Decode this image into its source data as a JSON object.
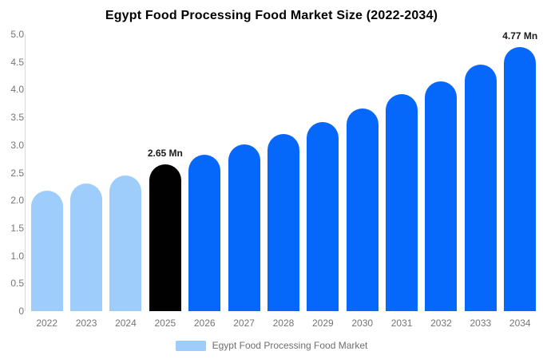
{
  "title": "Egypt Food Processing Food Market Size (2022-2034)",
  "legend": {
    "label": "Egypt Food Processing Food Market",
    "swatch_color": "#9ECDFB"
  },
  "colors": {
    "historical_bar": "#9ECDFB",
    "base_year_bar": "#010101",
    "forecast_bar": "#0667FB",
    "axis_line": "#D9D9D9",
    "axis_text": "#757575",
    "annotation_text": "#1A1A1A",
    "title_text": "#000000",
    "background": "#FFFFFF"
  },
  "chart_data": {
    "type": "bar",
    "title": "Egypt Food Processing Food Market Size (2022-2034)",
    "xlabel": "",
    "ylabel": "",
    "unit": "Mn",
    "categories": [
      "2022",
      "2023",
      "2024",
      "2025",
      "2026",
      "2027",
      "2028",
      "2029",
      "2030",
      "2031",
      "2032",
      "2033",
      "2034"
    ],
    "series": [
      {
        "name": "Egypt Food Processing Food Market",
        "values": [
          2.17,
          2.31,
          2.45,
          2.65,
          2.83,
          3.01,
          3.2,
          3.42,
          3.66,
          3.92,
          4.15,
          4.45,
          4.77
        ]
      }
    ],
    "bar_color_roles": [
      "historical_bar",
      "historical_bar",
      "historical_bar",
      "base_year_bar",
      "forecast_bar",
      "forecast_bar",
      "forecast_bar",
      "forecast_bar",
      "forecast_bar",
      "forecast_bar",
      "forecast_bar",
      "forecast_bar",
      "forecast_bar"
    ],
    "ylim": [
      0,
      5.0
    ],
    "yticks": [
      "5.0",
      "4.5",
      "4.0",
      "3.5",
      "3.0",
      "2.5",
      "2.0",
      "1.5",
      "1.0",
      "0.5",
      "0"
    ],
    "ytick_values": [
      5.0,
      4.5,
      4.0,
      3.5,
      3.0,
      2.5,
      2.0,
      1.5,
      1.0,
      0.5,
      0
    ],
    "grid": false,
    "legend_position": "bottom",
    "annotations": [
      {
        "category": "2025",
        "text": "2.65 Mn"
      },
      {
        "category": "2034",
        "text": "4.77 Mn"
      }
    ]
  }
}
